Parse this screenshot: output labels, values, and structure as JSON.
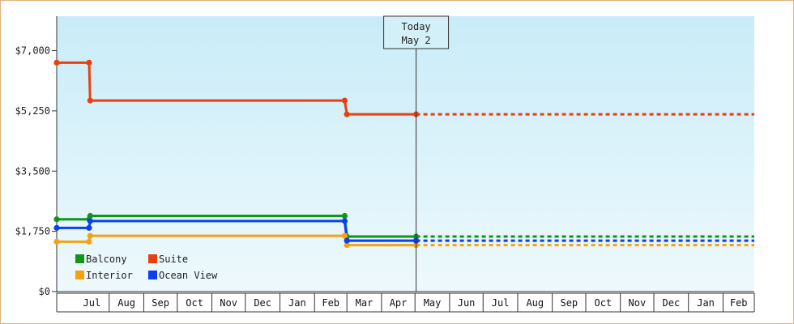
{
  "chart_data": {
    "type": "line",
    "step": true,
    "title": "",
    "xlabel": "",
    "ylabel": "",
    "ylim": [
      0,
      8000
    ],
    "yticks": [
      0,
      1750,
      3500,
      5250,
      7000
    ],
    "ytick_labels": [
      "$0",
      "$1,750",
      "$3,500",
      "$5,250",
      "$7,000"
    ],
    "x_range": [
      "2015-06-15",
      "2017-03-01"
    ],
    "month_labels": [
      {
        "label": "Jul",
        "start": "2015-07-01",
        "end": "2015-08-01"
      },
      {
        "label": "Aug",
        "start": "2015-08-01",
        "end": "2015-09-01"
      },
      {
        "label": "Sep",
        "start": "2015-09-01",
        "end": "2015-10-01"
      },
      {
        "label": "Oct",
        "start": "2015-10-01",
        "end": "2015-11-01"
      },
      {
        "label": "Nov",
        "start": "2015-11-01",
        "end": "2015-12-01"
      },
      {
        "label": "Dec",
        "start": "2015-12-01",
        "end": "2016-01-01"
      },
      {
        "label": "Jan",
        "start": "2016-01-01",
        "end": "2016-02-01"
      },
      {
        "label": "Feb",
        "start": "2016-02-01",
        "end": "2016-03-01"
      },
      {
        "label": "Mar",
        "start": "2016-03-01",
        "end": "2016-04-01"
      },
      {
        "label": "Apr",
        "start": "2016-04-01",
        "end": "2016-05-01"
      },
      {
        "label": "May",
        "start": "2016-05-01",
        "end": "2016-06-01"
      },
      {
        "label": "Jun",
        "start": "2016-06-01",
        "end": "2016-07-01"
      },
      {
        "label": "Jul",
        "start": "2016-07-01",
        "end": "2016-08-01"
      },
      {
        "label": "Aug",
        "start": "2016-08-01",
        "end": "2016-09-01"
      },
      {
        "label": "Sep",
        "start": "2016-09-01",
        "end": "2016-10-01"
      },
      {
        "label": "Oct",
        "start": "2016-10-01",
        "end": "2016-11-01"
      },
      {
        "label": "Nov",
        "start": "2016-11-01",
        "end": "2016-12-01"
      },
      {
        "label": "Dec",
        "start": "2016-12-01",
        "end": "2017-01-01"
      },
      {
        "label": "Jan",
        "start": "2017-01-01",
        "end": "2017-02-01"
      },
      {
        "label": "Feb",
        "start": "2017-02-01",
        "end": "2017-03-01"
      }
    ],
    "today": {
      "date": "2016-05-02",
      "label_line1": "Today",
      "label_line2": "May 2"
    },
    "grid": false,
    "background": "light-blue gradient",
    "legend_position": "bottom-left",
    "series": [
      {
        "name": "Balcony",
        "color": "#109618",
        "points": [
          {
            "date": "2015-06-15",
            "value": 2100
          },
          {
            "date": "2015-07-14",
            "value": 2100
          },
          {
            "date": "2015-07-15",
            "value": 2200
          },
          {
            "date": "2016-02-28",
            "value": 2200
          },
          {
            "date": "2016-03-01",
            "value": 1600
          },
          {
            "date": "2016-05-02",
            "value": 1600
          }
        ],
        "projected_value": 1600
      },
      {
        "name": "Interior",
        "color": "#f4a30f",
        "points": [
          {
            "date": "2015-06-15",
            "value": 1450
          },
          {
            "date": "2015-07-14",
            "value": 1450
          },
          {
            "date": "2015-07-15",
            "value": 1620
          },
          {
            "date": "2016-02-28",
            "value": 1620
          },
          {
            "date": "2016-03-01",
            "value": 1350
          },
          {
            "date": "2016-05-02",
            "value": 1350
          }
        ],
        "projected_value": 1350
      },
      {
        "name": "Suite",
        "color": "#e8400f",
        "points": [
          {
            "date": "2015-06-15",
            "value": 6650
          },
          {
            "date": "2015-07-14",
            "value": 6650
          },
          {
            "date": "2015-07-15",
            "value": 5550
          },
          {
            "date": "2016-02-28",
            "value": 5550
          },
          {
            "date": "2016-03-01",
            "value": 5150
          },
          {
            "date": "2016-05-02",
            "value": 5150
          }
        ],
        "projected_value": 5150
      },
      {
        "name": "Ocean View",
        "color": "#0b3ff2",
        "points": [
          {
            "date": "2015-06-15",
            "value": 1850
          },
          {
            "date": "2015-07-14",
            "value": 1850
          },
          {
            "date": "2015-07-15",
            "value": 2050
          },
          {
            "date": "2016-02-28",
            "value": 2050
          },
          {
            "date": "2016-03-01",
            "value": 1480
          },
          {
            "date": "2016-05-02",
            "value": 1480
          }
        ],
        "projected_value": 1480
      }
    ]
  }
}
